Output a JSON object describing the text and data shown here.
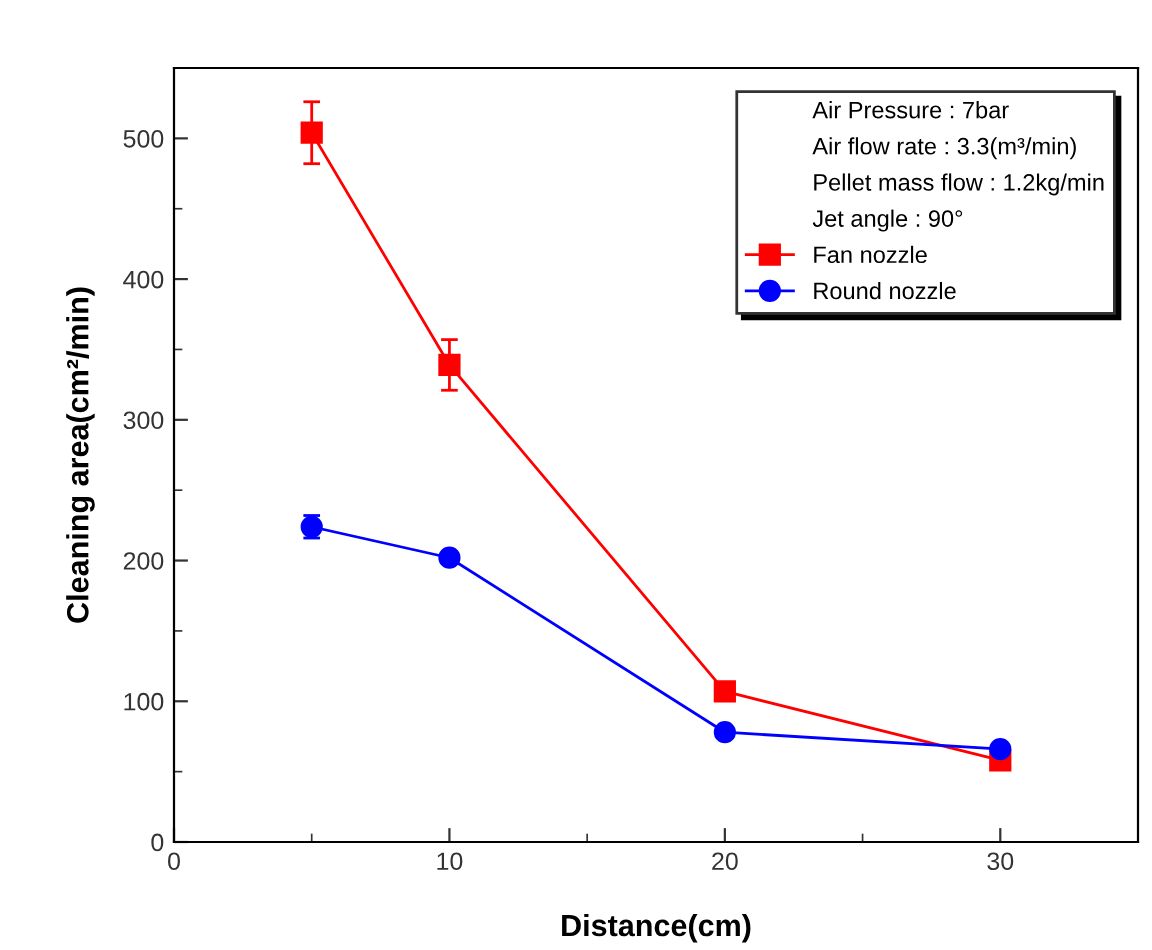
{
  "chart_data": {
    "type": "line",
    "xlabel": "Distance(cm)",
    "ylabel": "Cleaning area(cm²/min)",
    "x": [
      5,
      10,
      20,
      30
    ],
    "series": [
      {
        "name": "Fan nozzle",
        "color": "#ff0000",
        "marker": "square",
        "values": [
          504,
          339,
          107,
          58
        ],
        "errors": [
          22,
          18,
          null,
          null
        ]
      },
      {
        "name": "Round nozzle",
        "color": "#0000ff",
        "marker": "circle",
        "values": [
          224,
          202,
          78,
          66
        ],
        "errors": [
          8,
          4,
          null,
          null
        ]
      }
    ],
    "xlim": [
      0,
      35
    ],
    "xticks": [
      0,
      10,
      20,
      30
    ],
    "ylim": [
      0,
      550
    ],
    "yticks": [
      0,
      100,
      200,
      300,
      400,
      500
    ],
    "annotations": [
      "Air Pressure : 7bar",
      "Air flow rate : 3.3(m³/min)",
      "Pellet mass flow : 1.2kg/min",
      "Jet angle : 90°"
    ],
    "legend": "top right",
    "grid": false,
    "line_style": "solid"
  }
}
